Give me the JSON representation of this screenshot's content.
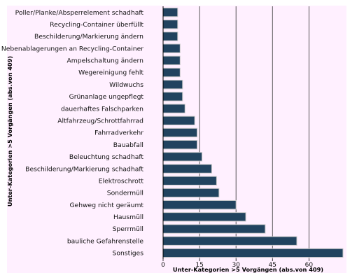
{
  "chart_data": {
    "type": "bar",
    "orientation": "horizontal",
    "categories": [
      "Poller/Planke/Absperrelement schadhaft",
      "Recycling-Container überfüllt",
      "Beschilderung/Markierung ändern",
      "Nebenablagerungen an Recycling-Container",
      "Ampelschaltung ändern",
      "Wegereinigung fehlt",
      "Wildwuchs",
      "Grünanlage ungepflegt",
      "dauerhaftes Falschparken",
      "Altfahrzeug/Schrottfahrrad",
      "Fahrradverkehr",
      "Bauabfall",
      "Beleuchtung schadhaft",
      "Beschilderung/Markierung schadhaft",
      "Elektroschrott",
      "Sondermüll",
      "Gehweg nicht geräumt",
      "Hausmüll",
      "Sperrmüll",
      "bauliche Gefahrenstelle",
      "Sonstiges"
    ],
    "values": [
      6,
      6,
      6,
      7,
      7,
      7,
      8,
      8,
      9,
      13,
      14,
      14,
      16,
      20,
      22,
      23,
      30,
      34,
      42,
      55,
      74
    ],
    "xlabel": "Unter-Kategorien >5 Vorgängen (abs.von 409)",
    "ylabel": "Unter-Kategorien >5 Vorgängen (abs.von 409)",
    "xlim": [
      0,
      74
    ],
    "xticks": [
      0,
      15,
      30,
      45,
      60
    ],
    "grid": "vertical",
    "legend": "none"
  },
  "colors": {
    "bar": "#21435f",
    "bar_edge": "#cccccc",
    "background": "#fff0ff",
    "grid": "#444444"
  }
}
